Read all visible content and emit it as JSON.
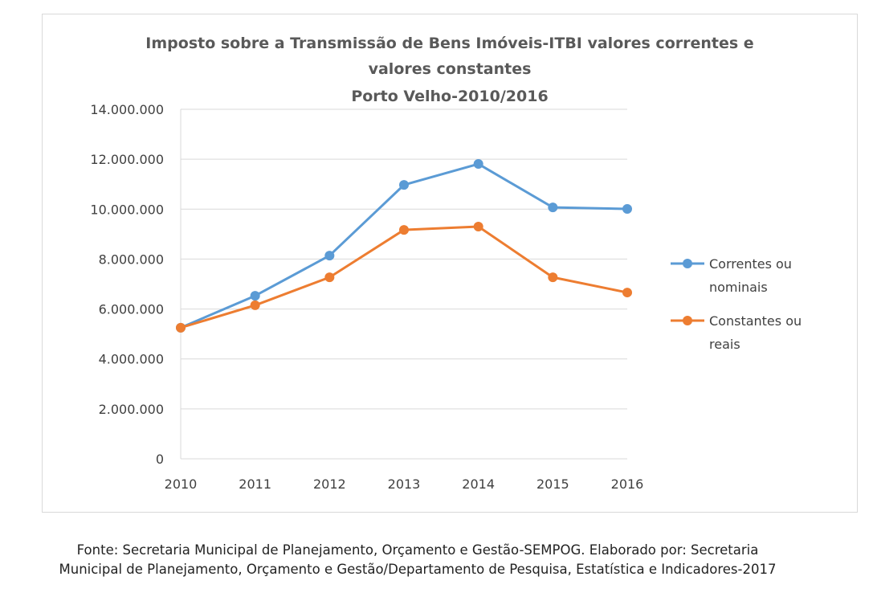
{
  "chart_data": {
    "type": "line",
    "title": [
      "Imposto sobre a Transmissão  de Bens Imóveis-ITBI valores correntes e",
      "valores constantes",
      "Porto Velho-2010/2016"
    ],
    "categories": [
      "2010",
      "2011",
      "2012",
      "2013",
      "2014",
      "2015",
      "2016"
    ],
    "yticks": [
      "0",
      "2.000.000",
      "4.000.000",
      "6.000.000",
      "8.000.000",
      "10.000.000",
      "12.000.000",
      "14.000.000"
    ],
    "ylim": [
      0,
      14000000
    ],
    "grid": true,
    "legend_position": "right",
    "series": [
      {
        "name": "Correntes ou nominais",
        "legend_lines": [
          "Correntes ou",
          "nominais"
        ],
        "color": "#5b9bd5",
        "values": [
          5250000,
          6530000,
          8140000,
          10970000,
          11810000,
          10070000,
          10010000
        ]
      },
      {
        "name": "Constantes ou reais",
        "legend_lines": [
          "Constantes ou",
          "reais"
        ],
        "color": "#ed7d31",
        "values": [
          5250000,
          6150000,
          7270000,
          9170000,
          9300000,
          7270000,
          6660000
        ]
      }
    ]
  },
  "source": [
    "Fonte: Secretaria Municipal de Planejamento, Orçamento e Gestão-SEMPOG. Elaborado por: Secretaria",
    "Municipal de Planejamento, Orçamento e Gestão/Departamento de Pesquisa, Estatística e Indicadores-2017"
  ]
}
